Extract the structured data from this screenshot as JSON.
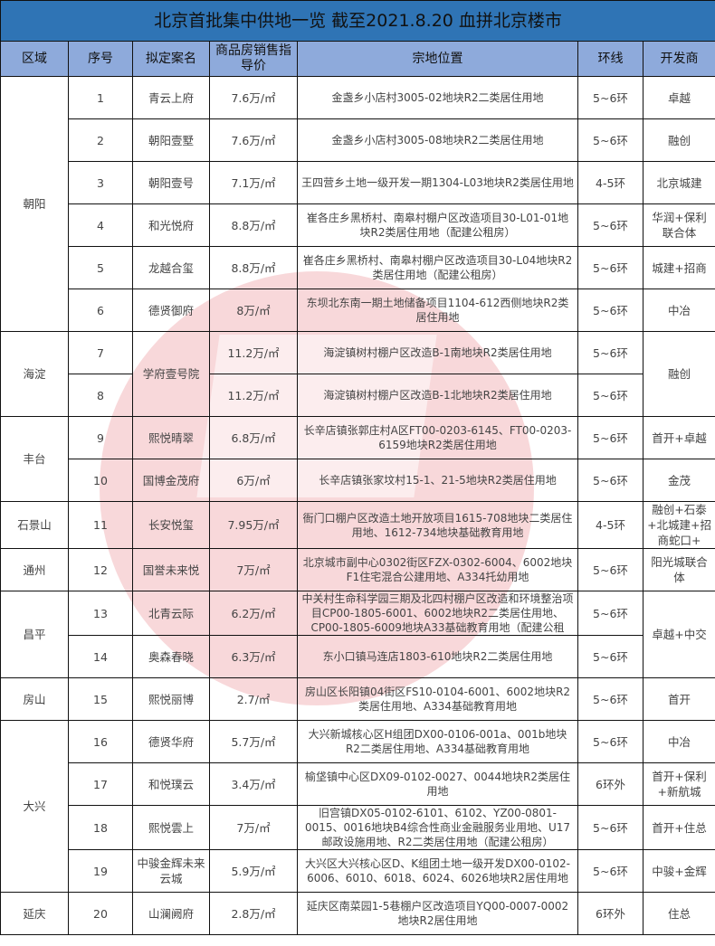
{
  "title": "北京首批集中供地一览 截至2021.8.20 血拼北京楼市",
  "headers": [
    "区域",
    "序号",
    "拟定案名",
    "商品房销售指导价",
    "宗地位置",
    "环线",
    "开发商"
  ],
  "colors": {
    "title_bg": "#2f74b5",
    "header_bg": "#8eaadb",
    "watermark": "#d72832"
  },
  "regions": [
    {
      "name": "朝阳",
      "rows": [
        {
          "no": "1",
          "name": "青云上府",
          "price": "7.6万/㎡",
          "location": "金盏乡小店村3005-02地块R2二类居住用地",
          "ring": "5~6环",
          "developer": "卓越"
        },
        {
          "no": "2",
          "name": "朝阳壹墅",
          "price": "7.6万/㎡",
          "location": "金盏乡小店村3005-08地块R2二类居住用地",
          "ring": "5~6环",
          "developer": "融创"
        },
        {
          "no": "3",
          "name": "朝阳壹号",
          "price": "7.1万/㎡",
          "location": "王四营乡土地一级开发一期1304-L03地块R2类居住用地",
          "ring": "4-5环",
          "developer": "北京城建"
        },
        {
          "no": "4",
          "name": "和光悦府",
          "price": "8.8万/㎡",
          "location": "崔各庄乡黑桥村、南皋村棚户区改造项目30-L01-01地块R2类居住用地（配建公租房）",
          "ring": "5~6环",
          "developer": "华润+保利联合体"
        },
        {
          "no": "5",
          "name": "龙越合玺",
          "price": "8.8万/㎡",
          "location": "崔各庄乡黑桥村、南皋村棚户区改造项目30-L04地块R2类居住用地（配建公租房）",
          "ring": "5~6环",
          "developer": "城建+招商"
        },
        {
          "no": "6",
          "name": "德贤御府",
          "price": "8万/㎡",
          "location": "东坝北东南一期土地储备项目1104-612西侧地块R2类居住用地",
          "ring": "5~6环",
          "developer": "中冶"
        }
      ]
    },
    {
      "name": "海淀",
      "rows": [
        {
          "no": "7",
          "name": "学府壹号院",
          "price": "11.2万/㎡",
          "location": "海淀镇树村棚户区改造B-1南地块R2类居住用地",
          "ring": "5~6环",
          "developer": "融创"
        },
        {
          "no": "8",
          "name": null,
          "price": "11.2万/㎡",
          "location": "海淀镇树村棚户区改造B-1北地块R2类居住用地",
          "ring": "5~6环",
          "developer": null
        }
      ]
    },
    {
      "name": "丰台",
      "rows": [
        {
          "no": "9",
          "name": "熙悦晴翠",
          "price": "6.8万/㎡",
          "location": "长辛店镇张郭庄村A区FT00-0203-6145、FT00-0203-6159地块R2类居住用地",
          "ring": "5~6环",
          "developer": "首开+卓越"
        },
        {
          "no": "10",
          "name": "国博金茂府",
          "price": "6万/㎡",
          "location": "长辛店镇张家坟村15-1、21-5地块R2类居住用地",
          "ring": "5~6环",
          "developer": "金茂"
        }
      ]
    },
    {
      "name": "石景山",
      "rows": [
        {
          "no": "11",
          "name": "长安悦玺",
          "price": "7.95万/㎡",
          "location": "衙门口棚户区改造土地开放项目1615-708地块二类居住用地、1612-734地块基础教育用地",
          "ring": "4-5环",
          "developer": "融创+石泰+北城建+招商蛇口+"
        }
      ]
    },
    {
      "name": "通州",
      "rows": [
        {
          "no": "12",
          "name": "国誉未来悦",
          "price": "7万/㎡",
          "location": "北京城市副中心0302街区FZX-0302-6004、6002地块F1住宅混合公建用地、A334托幼用地",
          "ring": "5~6环",
          "developer": "阳光城联合体"
        }
      ]
    },
    {
      "name": "昌平",
      "rows": [
        {
          "no": "13",
          "name": "北青云际",
          "price": "6.2万/㎡",
          "location": "中关村生命科学园三期及北四村棚户区改造和环境整治项目CP00-1805-6001、6002地块R2二类居住用地、CP00-1805-6009地块A33基础教育用地（配建公租",
          "ring": "5~6环",
          "developer": "卓越+中交"
        },
        {
          "no": "14",
          "name": "奥森春晓",
          "price": "6.3万/㎡",
          "location": "东小口镇马连店1803-610地块R2二类居住用地",
          "ring": "5~6环",
          "developer": null
        }
      ]
    },
    {
      "name": "房山",
      "rows": [
        {
          "no": "15",
          "name": "熙悦丽博",
          "price": "2.7/㎡",
          "location": "房山区长阳镇04街区FS10-0104-6001、6002地块R2类居住用地、A334基础教育用地",
          "ring": "5~6环",
          "developer": "首开"
        }
      ]
    },
    {
      "name": "大兴",
      "rows": [
        {
          "no": "16",
          "name": "德贤华府",
          "price": "5.7万/㎡",
          "location": "大兴新城核心区H组团DX00-0106-001a、001b地块R2二类居住用地、A334基础教育用地",
          "ring": "5~6环",
          "developer": "中冶"
        },
        {
          "no": "17",
          "name": "和悦璞云",
          "price": "3.4万/㎡",
          "location": "榆垡镇中心区DX09-0102-0027、0044地块R2类居住用地",
          "ring": "6环外",
          "developer": "首开+保利+新航城"
        },
        {
          "no": "18",
          "name": "熙悦雲上",
          "price": "7万/㎡",
          "location": "旧宫镇DX05-0102-6101、6102、YZ00-0801-0015、0016地块B4综合性商业金融服务业用地、U17邮政设施用地、R2二类居住用地（配建公租房）",
          "ring": "5~6环",
          "developer": "首开+住总"
        },
        {
          "no": "19",
          "name": "中骏金辉未来云城",
          "price": "5.9万/㎡",
          "location": "大兴区大兴核心区D、K组团土地一级开发DX00-0102-6006、6010、6018、6024、6026地块R2居住用地",
          "ring": "5~6环",
          "developer": "中骏+金辉"
        }
      ]
    },
    {
      "name": "延庆",
      "rows": [
        {
          "no": "20",
          "name": "山澜阙府",
          "price": "2.8万/㎡",
          "location": "延庆区南菜园1-5巷棚户区改造项目YQ00-0007-0002地块R2居住用地",
          "ring": "6环外",
          "developer": "住总"
        }
      ]
    }
  ]
}
